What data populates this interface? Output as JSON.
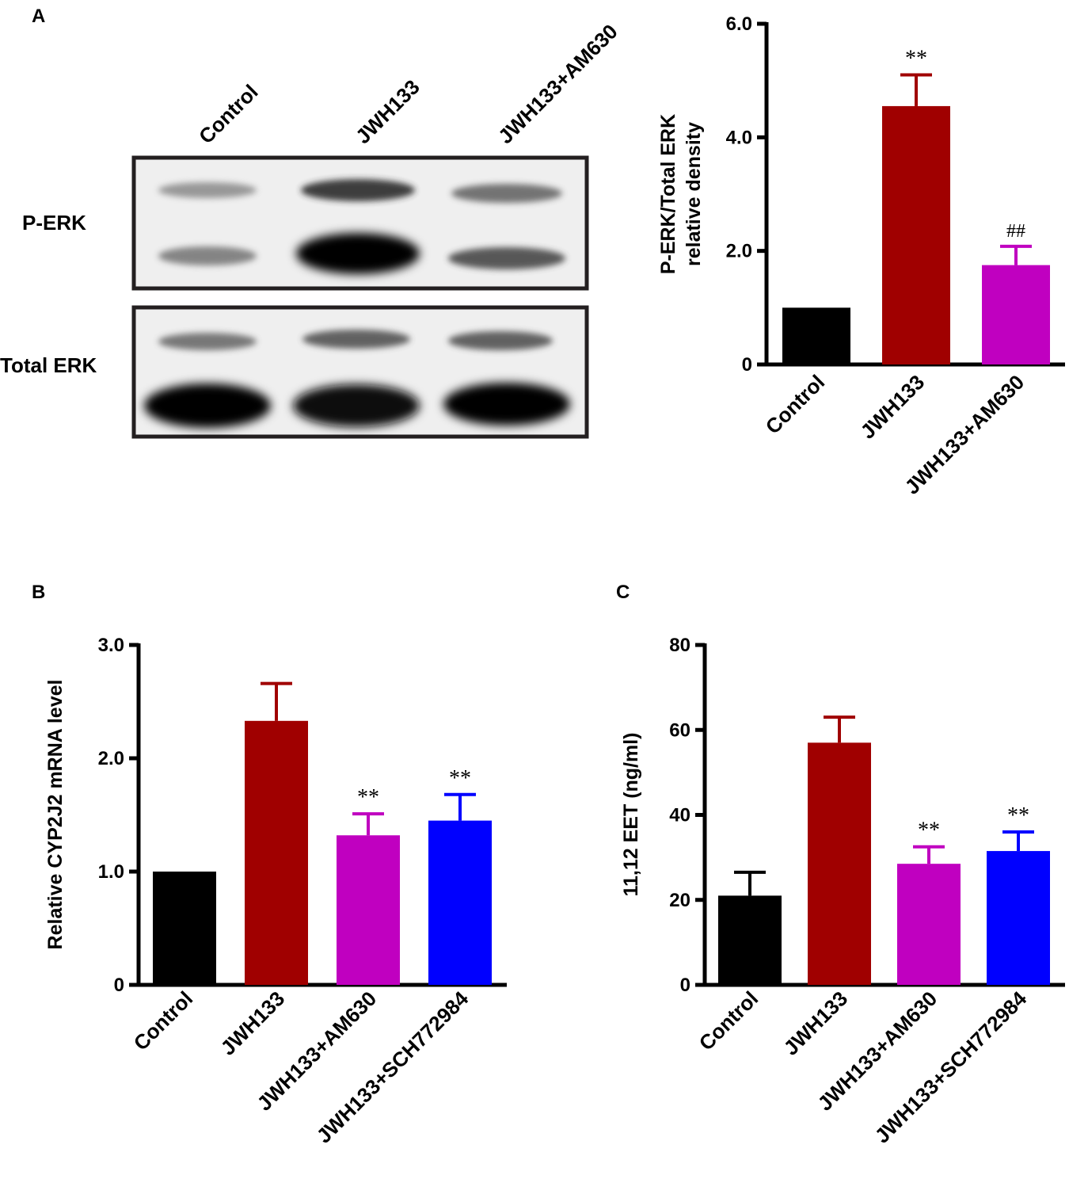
{
  "panels": {
    "a": {
      "label": "A",
      "lanes": [
        "Control",
        "JWH133",
        "JWH133+AM630"
      ],
      "rows": [
        "P-ERK",
        "Total ERK"
      ]
    },
    "b": {
      "label": "B"
    },
    "c": {
      "label": "C"
    }
  },
  "colors": {
    "Control": "#000000",
    "JWH133": "#a00000",
    "JWH133+AM630": "#c000c0",
    "JWH133+SCH772984": "#0000ff"
  },
  "chart_data": [
    {
      "type": "bar",
      "panel": "A",
      "categories": [
        "Control",
        "JWH133",
        "JWH133+AM630"
      ],
      "values": [
        1.0,
        4.55,
        1.75
      ],
      "errors": [
        0,
        0.55,
        0.33
      ],
      "annotations": [
        "",
        "**",
        "##"
      ],
      "ylabel": "P-ERK/Total ERK relative density",
      "yticks": [
        "0",
        "2.0",
        "4.0",
        "6.0"
      ],
      "ylim": [
        0,
        6
      ]
    },
    {
      "type": "bar",
      "panel": "B",
      "categories": [
        "Control",
        "JWH133",
        "JWH133+AM630",
        "JWH133+SCH772984"
      ],
      "values": [
        1.0,
        2.33,
        1.32,
        1.45
      ],
      "errors": [
        0,
        0.33,
        0.19,
        0.23
      ],
      "annotations": [
        "",
        "",
        "**",
        "**"
      ],
      "ylabel": "Relative CYP2J2 mRNA level",
      "yticks": [
        "0",
        "1.0",
        "2.0",
        "3.0"
      ],
      "ylim": [
        0,
        3
      ]
    },
    {
      "type": "bar",
      "panel": "C",
      "categories": [
        "Control",
        "JWH133",
        "JWH133+AM630",
        "JWH133+SCH772984"
      ],
      "values": [
        21,
        57,
        28.5,
        31.5
      ],
      "errors": [
        5.5,
        6,
        4,
        4.5
      ],
      "annotations": [
        "",
        "",
        "**",
        "**"
      ],
      "ylabel": "11,12 EET (ng/ml)",
      "yticks": [
        "0",
        "20",
        "40",
        "60",
        "80"
      ],
      "ylim": [
        0,
        80
      ]
    }
  ]
}
